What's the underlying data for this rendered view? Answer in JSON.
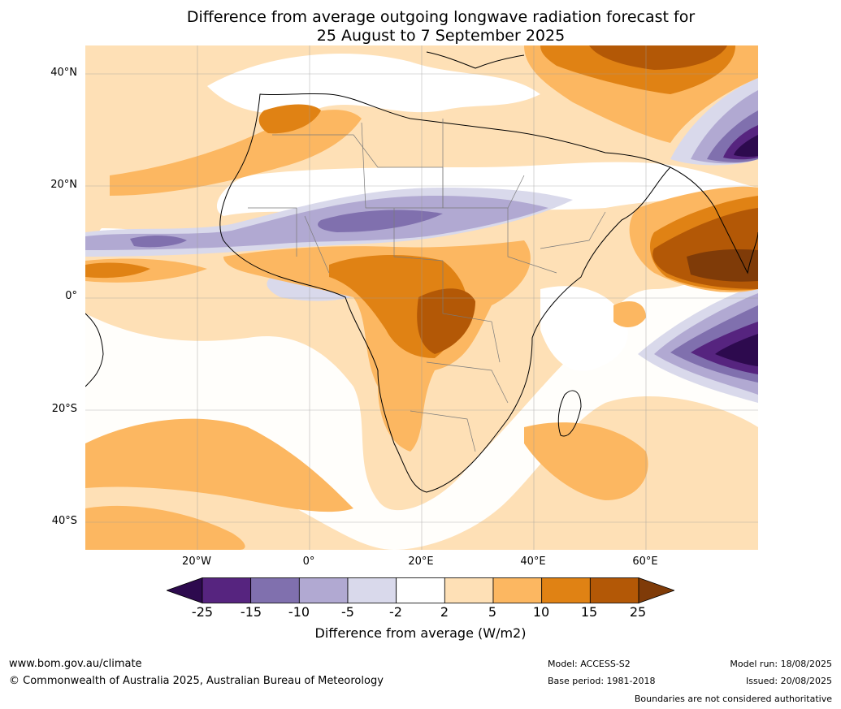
{
  "title": {
    "line1": "Difference from average outgoing longwave radiation forecast for",
    "line2": "25 August to 7 September 2025"
  },
  "lat_labels": [
    "40°N",
    "20°N",
    "0°",
    "20°S",
    "40°S"
  ],
  "lon_labels": [
    "20°W",
    "0°",
    "20°E",
    "40°E",
    "60°E"
  ],
  "colorbar": {
    "ticks": [
      "-25",
      "-15",
      "-10",
      "-5",
      "-2",
      "2",
      "5",
      "10",
      "15",
      "25"
    ],
    "label": "Difference from average (W/m2)",
    "colors": [
      "#2d0a4e",
      "#56247f",
      "#8070ae",
      "#b1a9d2",
      "#d9d9eb",
      "#ffffff",
      "#fee0b6",
      "#fcb761",
      "#e08214",
      "#b35806",
      "#7f3b08"
    ]
  },
  "footer": {
    "website": "www.bom.gov.au/climate",
    "copyright": "© Commonwealth of Australia 2025, Australian Bureau of Meteorology",
    "model": "Model: ACCESS-S2",
    "base_period": "Base period: 1981-2018",
    "model_run": "Model run: 18/08/2025",
    "issued": "Issued: 20/08/2025",
    "boundaries": "Boundaries are not considered authoritative"
  }
}
